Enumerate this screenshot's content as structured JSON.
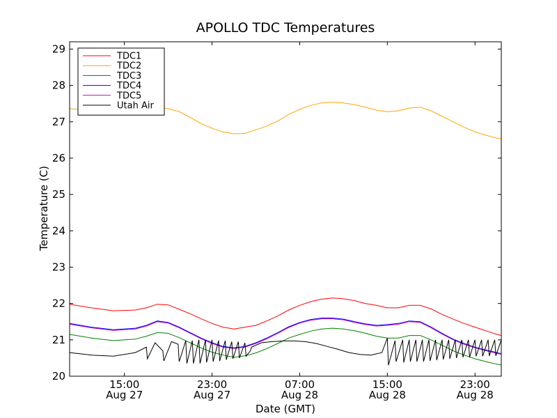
{
  "chart_data": {
    "type": "line",
    "title": "APOLLO TDC Temperatures",
    "xlabel": "Date (GMT)",
    "ylabel": "Temperature (C)",
    "x_units": "hours since Aug 27 10:00 GMT",
    "xlim": [
      0,
      39.4
    ],
    "ylim": [
      20,
      29.2
    ],
    "yticks": [
      20,
      21,
      22,
      23,
      24,
      25,
      26,
      27,
      28,
      29
    ],
    "xticks": [
      {
        "x": 5,
        "line1": "15:00",
        "line2": "Aug 27"
      },
      {
        "x": 13,
        "line1": "23:00",
        "line2": "Aug 27"
      },
      {
        "x": 21,
        "line1": "07:00",
        "line2": "Aug 28"
      },
      {
        "x": 29,
        "line1": "15:00",
        "line2": "Aug 28"
      },
      {
        "x": 37,
        "line1": "23:00",
        "line2": "Aug 28"
      }
    ],
    "grid": false,
    "legend_position": "top-left",
    "series": [
      {
        "name": "TDC1",
        "color": "#ff0000",
        "x": [
          0,
          2,
          4,
          6,
          7,
          8,
          9,
          10,
          11,
          12,
          13,
          14,
          15,
          16,
          17,
          18,
          19,
          20,
          21,
          22,
          23,
          24,
          25,
          26,
          27,
          28,
          29,
          30,
          31,
          32,
          33,
          34,
          35,
          36,
          37,
          38,
          39,
          39.4
        ],
        "y": [
          21.98,
          21.88,
          21.8,
          21.82,
          21.88,
          21.98,
          21.96,
          21.84,
          21.72,
          21.58,
          21.45,
          21.35,
          21.3,
          21.35,
          21.4,
          21.52,
          21.66,
          21.82,
          21.95,
          22.05,
          22.12,
          22.15,
          22.13,
          22.08,
          22.0,
          21.95,
          21.88,
          21.88,
          21.95,
          21.95,
          21.85,
          21.7,
          21.57,
          21.45,
          21.35,
          21.25,
          21.15,
          21.12
        ]
      },
      {
        "name": "TDC2",
        "color": "#ffa500",
        "x": [
          0,
          2,
          4,
          6,
          7,
          8,
          9,
          10,
          11,
          12,
          13,
          14,
          15,
          16,
          17,
          18,
          19,
          20,
          21,
          22,
          23,
          24,
          25,
          26,
          27,
          28,
          29,
          30,
          31,
          32,
          33,
          34,
          35,
          36,
          37,
          38,
          39,
          39.4
        ],
        "y": [
          27.36,
          27.3,
          27.25,
          27.3,
          27.38,
          27.42,
          27.36,
          27.28,
          27.12,
          26.95,
          26.82,
          26.72,
          26.67,
          26.68,
          26.78,
          26.88,
          27.02,
          27.2,
          27.34,
          27.45,
          27.52,
          27.54,
          27.52,
          27.47,
          27.4,
          27.32,
          27.28,
          27.3,
          27.38,
          27.4,
          27.3,
          27.15,
          27.0,
          26.85,
          26.72,
          26.63,
          26.55,
          26.53
        ]
      },
      {
        "name": "TDC3",
        "color": "#008000",
        "x": [
          0,
          2,
          4,
          6,
          7,
          8,
          9,
          10,
          11,
          12,
          13,
          14,
          15,
          16,
          17,
          18,
          19,
          20,
          21,
          22,
          23,
          24,
          25,
          26,
          27,
          28,
          29,
          30,
          31,
          32,
          33,
          34,
          35,
          36,
          37,
          38,
          39,
          39.4
        ],
        "y": [
          21.15,
          21.05,
          20.98,
          21.02,
          21.1,
          21.2,
          21.18,
          21.06,
          20.92,
          20.78,
          20.66,
          20.58,
          20.52,
          20.56,
          20.64,
          20.76,
          20.9,
          21.05,
          21.15,
          21.24,
          21.3,
          21.32,
          21.3,
          21.25,
          21.18,
          21.1,
          21.05,
          21.05,
          21.12,
          21.12,
          21.0,
          20.85,
          20.7,
          20.58,
          20.48,
          20.4,
          20.33,
          20.31
        ]
      },
      {
        "name": "TDC4",
        "color": "#0000ff",
        "x": [
          0,
          2,
          4,
          6,
          7,
          8,
          9,
          10,
          11,
          12,
          13,
          14,
          15,
          16,
          17,
          18,
          19,
          20,
          21,
          22,
          23,
          24,
          25,
          26,
          27,
          28,
          29,
          30,
          31,
          32,
          33,
          34,
          35,
          36,
          37,
          38,
          39,
          39.4
        ],
        "y": [
          21.45,
          21.35,
          21.28,
          21.32,
          21.4,
          21.52,
          21.48,
          21.35,
          21.2,
          21.05,
          20.92,
          20.82,
          20.78,
          20.82,
          20.92,
          21.05,
          21.2,
          21.36,
          21.48,
          21.56,
          21.6,
          21.6,
          21.57,
          21.5,
          21.44,
          21.4,
          21.42,
          21.45,
          21.52,
          21.5,
          21.35,
          21.18,
          21.02,
          20.9,
          20.8,
          20.72,
          20.65,
          20.62
        ]
      },
      {
        "name": "TDC5",
        "color": "#bf00bf",
        "x": [
          0,
          2,
          4,
          6,
          7,
          8,
          9,
          10,
          11,
          12,
          13,
          14,
          15,
          16,
          17,
          18,
          19,
          20,
          21,
          22,
          23,
          24,
          25,
          26,
          27,
          28,
          29,
          30,
          31,
          32,
          33,
          34,
          35,
          36,
          37,
          38,
          39,
          39.4
        ],
        "y": [
          21.43,
          21.33,
          21.26,
          21.3,
          21.38,
          21.5,
          21.46,
          21.33,
          21.18,
          21.03,
          20.9,
          20.8,
          20.76,
          20.8,
          20.9,
          21.03,
          21.18,
          21.34,
          21.46,
          21.54,
          21.58,
          21.58,
          21.55,
          21.48,
          21.42,
          21.38,
          21.4,
          21.43,
          21.5,
          21.48,
          21.33,
          21.16,
          21.0,
          20.88,
          20.78,
          20.7,
          20.63,
          20.6
        ]
      },
      {
        "name": "Utah Air",
        "color": "#000000",
        "x": [
          0,
          2,
          4,
          6,
          7,
          7.1,
          7.8,
          8.5,
          8.6,
          9.3,
          9.9,
          10.0,
          10.6,
          10.7,
          11.2,
          11.3,
          11.8,
          11.9,
          12.4,
          12.5,
          13.0,
          13.1,
          13.6,
          13.7,
          14.2,
          14.3,
          14.8,
          14.9,
          15.4,
          15.5,
          16.0,
          16.1,
          16.5,
          16.6,
          17.5,
          18.5,
          19.5,
          20.5,
          21.5,
          22.5,
          23.5,
          24.5,
          25.5,
          26.5,
          27.5,
          28.5,
          29.0,
          29.1,
          29.7,
          29.8,
          30.4,
          30.5,
          31.0,
          31.1,
          31.6,
          31.7,
          32.2,
          32.3,
          32.8,
          32.9,
          33.4,
          33.5,
          34.0,
          34.1,
          34.6,
          34.7,
          35.2,
          35.3,
          35.8,
          35.9,
          36.4,
          36.5,
          37.0,
          37.1,
          37.6,
          37.7,
          38.2,
          38.3,
          38.8,
          38.9,
          39.4
        ],
        "y": [
          20.65,
          20.58,
          20.55,
          20.65,
          20.8,
          20.48,
          20.92,
          20.7,
          20.42,
          20.95,
          20.88,
          20.4,
          20.98,
          20.35,
          20.98,
          20.35,
          21.0,
          20.35,
          21.0,
          20.38,
          21.0,
          20.4,
          20.98,
          20.42,
          20.98,
          20.45,
          20.95,
          20.48,
          20.95,
          20.5,
          20.92,
          20.55,
          20.7,
          20.8,
          20.92,
          20.95,
          20.97,
          20.97,
          20.95,
          20.9,
          20.82,
          20.74,
          20.65,
          20.6,
          20.58,
          20.65,
          21.05,
          20.3,
          20.98,
          20.4,
          21.0,
          20.38,
          21.0,
          20.4,
          21.0,
          20.4,
          21.0,
          20.4,
          21.0,
          20.42,
          21.0,
          20.44,
          21.0,
          20.46,
          21.0,
          20.48,
          21.0,
          20.5,
          21.0,
          20.52,
          21.0,
          20.52,
          21.0,
          20.55,
          21.0,
          20.55,
          21.0,
          20.56,
          21.0,
          20.56,
          21.0
        ]
      }
    ]
  }
}
